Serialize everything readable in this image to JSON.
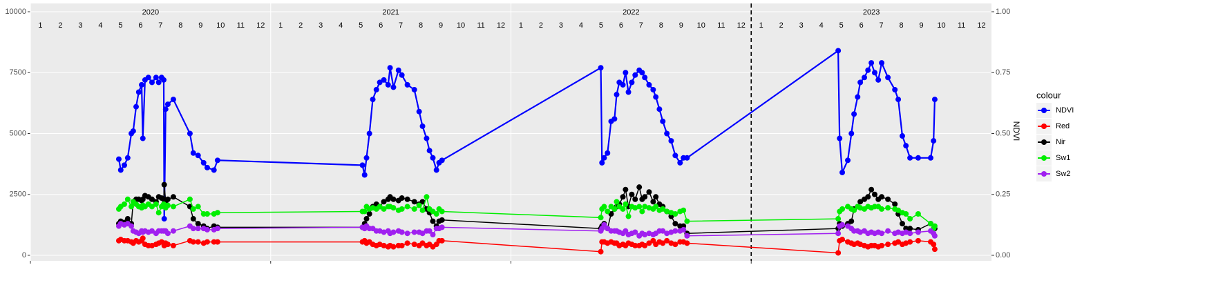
{
  "chart_data": {
    "type": "line",
    "xlim": [
      2020,
      2024
    ],
    "year_ticks": [
      2020,
      2021,
      2022,
      2023
    ],
    "month_labels": [
      1,
      2,
      3,
      4,
      5,
      6,
      7,
      8,
      9,
      10,
      11,
      12
    ],
    "vline": 2023,
    "ylim": [
      0,
      10000
    ],
    "yticks": [
      0,
      2500,
      5000,
      7500,
      10000
    ],
    "y2lim": [
      0,
      1
    ],
    "y2ticks": [
      {
        "value": 0,
        "label": "0.00"
      },
      {
        "value": 0.25,
        "label": "0.25"
      },
      {
        "value": 0.5,
        "label": "0.50"
      },
      {
        "value": 0.75,
        "label": "0.75"
      },
      {
        "value": 1,
        "label": "1.00"
      }
    ],
    "y2_label": "NDVI",
    "legend_title": "colour",
    "grid": true,
    "x": [
      2020.368,
      2020.376,
      2020.391,
      2020.405,
      2020.42,
      2020.428,
      2020.44,
      2020.451,
      2020.463,
      2020.468,
      2020.477,
      2020.491,
      2020.506,
      2020.523,
      2020.534,
      2020.546,
      2020.555,
      2020.557,
      2020.563,
      2020.572,
      2020.595,
      2020.664,
      2020.678,
      2020.698,
      2020.721,
      2020.736,
      2020.764,
      2020.779,
      2021.382,
      2021.391,
      2021.399,
      2021.411,
      2021.425,
      2021.44,
      2021.454,
      2021.471,
      2021.489,
      2021.497,
      2021.511,
      2021.532,
      2021.546,
      2021.569,
      2021.598,
      2021.618,
      2021.632,
      2021.649,
      2021.661,
      2021.675,
      2021.69,
      2021.701,
      2021.713,
      2022.374,
      2022.379,
      2022.388,
      2022.402,
      2022.417,
      2022.431,
      2022.44,
      2022.451,
      2022.466,
      2022.477,
      2022.489,
      2022.503,
      2022.517,
      2022.534,
      2022.546,
      2022.557,
      2022.575,
      2022.592,
      2022.603,
      2022.618,
      2022.632,
      2022.649,
      2022.667,
      2022.684,
      2022.704,
      2022.718,
      2022.733,
      2023.362,
      2023.368,
      2023.379,
      2023.402,
      2023.417,
      2023.428,
      2023.443,
      2023.454,
      2023.471,
      2023.486,
      2023.5,
      2023.514,
      2023.529,
      2023.543,
      2023.569,
      2023.598,
      2023.612,
      2023.629,
      2023.644,
      2023.661,
      2023.695,
      2023.747,
      2023.759,
      2023.764
    ],
    "series": [
      {
        "name": "NDVI",
        "color": "#0000ff",
        "axis": "y2",
        "values": [
          0.395,
          0.35,
          0.37,
          0.4,
          0.5,
          0.51,
          0.61,
          0.67,
          0.7,
          0.48,
          0.72,
          0.73,
          0.71,
          0.73,
          0.71,
          0.73,
          0.72,
          0.15,
          0.6,
          0.62,
          0.64,
          0.5,
          0.42,
          0.41,
          0.38,
          0.36,
          0.35,
          0.39,
          0.37,
          0.33,
          0.4,
          0.5,
          0.64,
          0.68,
          0.71,
          0.72,
          0.7,
          0.77,
          0.69,
          0.76,
          0.74,
          0.7,
          0.68,
          0.59,
          0.53,
          0.48,
          0.43,
          0.4,
          0.35,
          0.38,
          0.39,
          0.77,
          0.38,
          0.4,
          0.42,
          0.55,
          0.56,
          0.66,
          0.71,
          0.7,
          0.75,
          0.67,
          0.71,
          0.74,
          0.76,
          0.75,
          0.73,
          0.7,
          0.68,
          0.65,
          0.6,
          0.55,
          0.5,
          0.47,
          0.41,
          0.38,
          0.4,
          0.4,
          0.84,
          0.48,
          0.34,
          0.39,
          0.5,
          0.58,
          0.65,
          0.71,
          0.73,
          0.76,
          0.79,
          0.75,
          0.72,
          0.79,
          0.73,
          0.68,
          0.64,
          0.49,
          0.45,
          0.4,
          0.4,
          0.4,
          0.47,
          0.64
        ]
      },
      {
        "name": "Red",
        "color": "#ff0000",
        "values": [
          600,
          650,
          600,
          600,
          550,
          500,
          600,
          550,
          600,
          700,
          450,
          400,
          400,
          450,
          500,
          550,
          500,
          400,
          500,
          450,
          400,
          600,
          550,
          550,
          500,
          550,
          550,
          550,
          550,
          600,
          500,
          550,
          450,
          400,
          450,
          400,
          350,
          400,
          350,
          400,
          400,
          500,
          450,
          400,
          500,
          400,
          450,
          350,
          450,
          600,
          600,
          150,
          550,
          550,
          500,
          550,
          500,
          500,
          400,
          450,
          400,
          500,
          450,
          400,
          400,
          450,
          400,
          500,
          600,
          450,
          550,
          500,
          600,
          500,
          450,
          550,
          550,
          500,
          100,
          600,
          650,
          550,
          500,
          450,
          500,
          450,
          400,
          350,
          400,
          400,
          350,
          400,
          450,
          500,
          550,
          450,
          500,
          550,
          600,
          550,
          450,
          250
        ]
      },
      {
        "name": "Nir",
        "color": "#000000",
        "values": [
          1300,
          1400,
          1350,
          1500,
          1300,
          2200,
          2300,
          2300,
          2250,
          2300,
          2450,
          2400,
          2300,
          2200,
          2400,
          2350,
          2300,
          2900,
          2200,
          2300,
          2400,
          2000,
          1500,
          1300,
          1200,
          1100,
          1200,
          1150,
          1150,
          1300,
          1500,
          1700,
          2000,
          2100,
          2000,
          2200,
          2300,
          2400,
          2300,
          2250,
          2350,
          2300,
          2200,
          2100,
          2200,
          1900,
          1750,
          1400,
          1200,
          1400,
          1450,
          1100,
          1200,
          1300,
          1100,
          1700,
          1900,
          2000,
          2100,
          2400,
          2700,
          2000,
          2500,
          2300,
          2800,
          2300,
          2400,
          2600,
          2200,
          2400,
          2100,
          2000,
          1800,
          1600,
          1300,
          1200,
          1200,
          900,
          1100,
          1300,
          1200,
          1300,
          1400,
          1900,
          2000,
          2200,
          2300,
          2400,
          2700,
          2500,
          2300,
          2400,
          2300,
          2100,
          1700,
          1300,
          1100,
          1100,
          1050,
          1300,
          1100,
          1100
        ]
      },
      {
        "name": "Sw1",
        "color": "#00ee00",
        "values": [
          1900,
          2000,
          2100,
          2300,
          2000,
          2200,
          2100,
          2000,
          1950,
          2050,
          2000,
          2100,
          2000,
          2100,
          1750,
          2000,
          2100,
          2000,
          1950,
          2050,
          2000,
          2300,
          1900,
          2000,
          1700,
          1700,
          1700,
          1750,
          1800,
          1800,
          2000,
          1900,
          1950,
          1900,
          2000,
          1900,
          2000,
          2000,
          1950,
          1850,
          1900,
          2000,
          1900,
          2050,
          1850,
          2400,
          1900,
          1800,
          1700,
          1900,
          1800,
          1550,
          1900,
          2000,
          1800,
          2000,
          1900,
          2200,
          2000,
          1900,
          2100,
          1600,
          2000,
          1950,
          2000,
          1800,
          2000,
          1950,
          1900,
          2000,
          1850,
          1900,
          1800,
          1750,
          1700,
          1800,
          1850,
          1400,
          1500,
          1800,
          1900,
          2000,
          1900,
          1850,
          2000,
          1950,
          1900,
          2000,
          1950,
          2000,
          2000,
          1900,
          1950,
          1900,
          1850,
          1750,
          1700,
          1500,
          1700,
          1300,
          1100,
          1200
        ]
      },
      {
        "name": "Sw2",
        "color": "#a020f0",
        "values": [
          1200,
          1300,
          1250,
          1300,
          1200,
          1000,
          950,
          900,
          1000,
          950,
          1000,
          950,
          1000,
          900,
          1000,
          1000,
          1000,
          1000,
          1000,
          900,
          1000,
          1200,
          1100,
          1100,
          1100,
          1050,
          1050,
          1100,
          1150,
          1100,
          1200,
          1100,
          1100,
          1000,
          1000,
          950,
          1000,
          900,
          950,
          1000,
          950,
          900,
          950,
          950,
          900,
          1000,
          1000,
          850,
          1100,
          1100,
          1150,
          1000,
          1100,
          1250,
          1100,
          1000,
          1000,
          1000,
          950,
          900,
          1000,
          850,
          900,
          950,
          800,
          900,
          850,
          900,
          850,
          900,
          1000,
          1000,
          900,
          950,
          1000,
          1000,
          1050,
          800,
          900,
          1200,
          1250,
          1200,
          1100,
          1000,
          1000,
          950,
          1000,
          900,
          950,
          900,
          950,
          900,
          1000,
          900,
          950,
          900,
          950,
          900,
          950,
          1000,
          900,
          800
        ]
      }
    ]
  }
}
